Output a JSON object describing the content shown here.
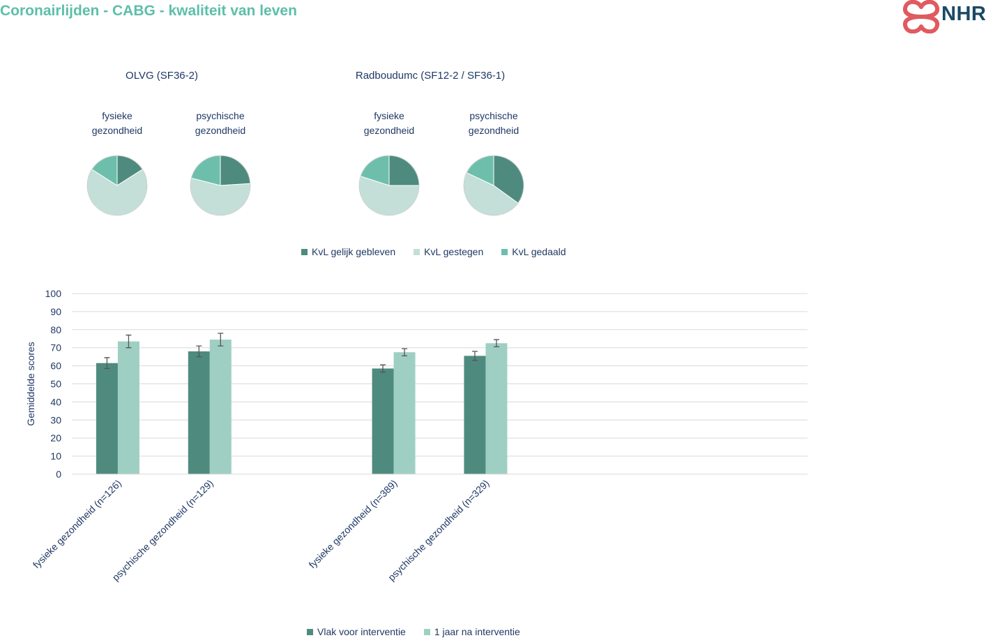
{
  "header": {
    "title": "Coronairlijden - CABG - kwaliteit van leven",
    "logo_text": "NHR"
  },
  "colors": {
    "dark": "#4e8b7e",
    "light": "#9fcfc3",
    "pale": "#c4ded8",
    "mint": "#6dbfac",
    "title": "#5cbfaa"
  },
  "chart_data": [
    {
      "type": "pie",
      "group_titles": [
        "OLVG (SF36-2)",
        "Radboudumc (SF12-2 / SF36-1)"
      ],
      "pies": [
        {
          "group": "OLVG (SF36-2)",
          "title_lines": [
            "fysieke",
            "gezondheid"
          ],
          "values": [
            16,
            68,
            16
          ]
        },
        {
          "group": "OLVG (SF36-2)",
          "title_lines": [
            "psychische",
            "gezondheid"
          ],
          "values": [
            24,
            55,
            21
          ]
        },
        {
          "group": "Radboudumc (SF12-2 / SF36-1)",
          "title_lines": [
            "fysieke",
            "gezondheid"
          ],
          "values": [
            25,
            55,
            20
          ]
        },
        {
          "group": "Radboudumc (SF12-2 / SF36-1)",
          "title_lines": [
            "psychische",
            "gezondheid"
          ],
          "values": [
            35,
            47,
            18
          ]
        }
      ],
      "legend": [
        "KvL gelijk gebleven",
        "KvL gestegen",
        "KvL gedaald"
      ]
    },
    {
      "type": "bar",
      "ylabel": "Gemiddelde scores",
      "ylim": [
        0,
        100
      ],
      "yticks": [
        0,
        10,
        20,
        30,
        40,
        50,
        60,
        70,
        80,
        90,
        100
      ],
      "categories": [
        "fysieke gezondheid (n=126)",
        "psychische gezondheid (n=129)",
        "",
        "fysieke gezondheid (n=389)",
        "psychische gezondheid (n=329)",
        "",
        "",
        ""
      ],
      "series": [
        {
          "name": "Vlak voor interventie",
          "values": [
            61.5,
            68,
            null,
            58.5,
            65.5,
            null,
            null,
            null
          ],
          "err": [
            3,
            3,
            null,
            2,
            2.5,
            null,
            null,
            null
          ]
        },
        {
          "name": "1 jaar na interventie",
          "values": [
            73.5,
            74.5,
            null,
            67.5,
            72.5,
            null,
            null,
            null
          ],
          "err": [
            3.5,
            3.5,
            null,
            2,
            2,
            null,
            null,
            null
          ]
        }
      ]
    }
  ]
}
